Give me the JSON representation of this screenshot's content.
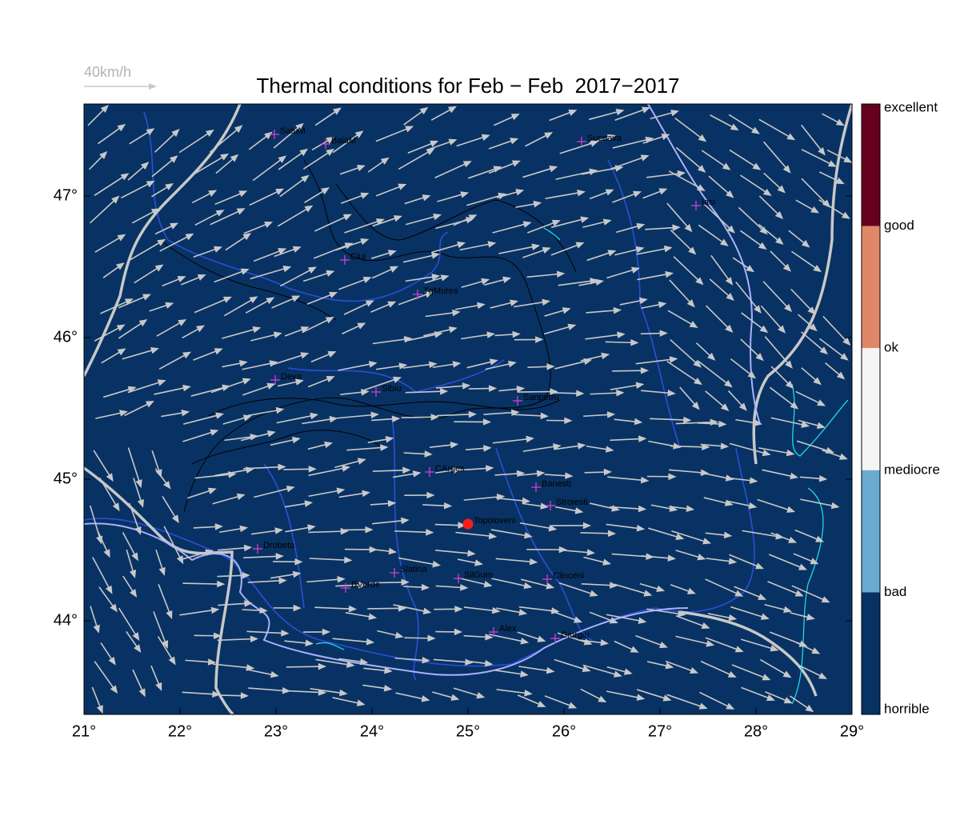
{
  "title": "Thermal conditions for Feb − Feb  2017−2017",
  "scale_label": "40km/h",
  "x_axis_labels": [
    "21°",
    "22°",
    "23°",
    "24°",
    "25°",
    "26°",
    "27°",
    "28°",
    "29°"
  ],
  "y_axis_labels": [
    "47°",
    "46°",
    "45°",
    "44°"
  ],
  "colorbar": {
    "labels": [
      "excellent",
      "good",
      "ok",
      "mediocre",
      "bad",
      "horrible"
    ],
    "colors": [
      "#67001f",
      "#e0876a",
      "#f5f5f5",
      "#6aaad0",
      "#083263"
    ]
  },
  "cities": [
    "SatuM",
    "BaiaM",
    "Suceava",
    "Iasi",
    "Cluj",
    "TgMures",
    "Deva",
    "Sibiu",
    "Sanpetru",
    "CArges",
    "Banesti",
    "Stroiesti",
    "Topoloveni",
    "Drobeta",
    "Slatina",
    "SilGum",
    "BVerde",
    "Clinceni",
    "Alex",
    "Giurgiu"
  ]
}
